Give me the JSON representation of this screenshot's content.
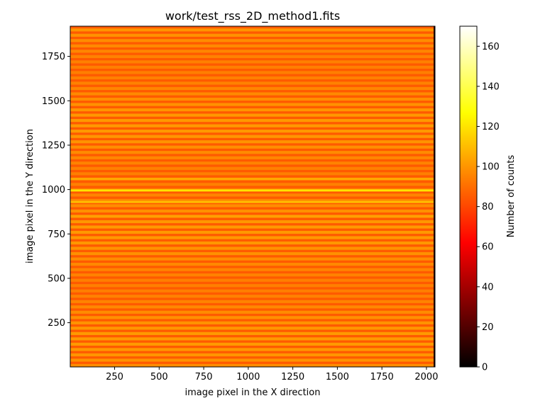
{
  "chart_data": {
    "type": "heatmap",
    "title": "work/test_rss_2D_method1.fits",
    "xlabel": "image pixel in the X direction",
    "ylabel": "image pixel in the Y direction",
    "colorbar_label": "Number of counts",
    "colormap": "hot",
    "xlim": [
      1,
      2048
    ],
    "ylim": [
      1,
      1920
    ],
    "clim": [
      0,
      170
    ],
    "x_ticks": [
      250,
      500,
      750,
      1000,
      1250,
      1500,
      1750,
      2000
    ],
    "y_ticks": [
      250,
      500,
      750,
      1000,
      1250,
      1500,
      1750
    ],
    "colorbar_ticks": [
      0,
      20,
      40,
      60,
      80,
      100,
      120,
      140,
      160
    ],
    "background_level": 85,
    "fiber_trace_level": 100,
    "fiber_trace_spacing": 30,
    "bright_rows": [
      {
        "y": 995,
        "value": 120
      },
      {
        "y": 930,
        "value": 110
      },
      {
        "y": 1060,
        "value": 105
      },
      {
        "y": 850,
        "value": 103
      }
    ],
    "grid": false
  }
}
